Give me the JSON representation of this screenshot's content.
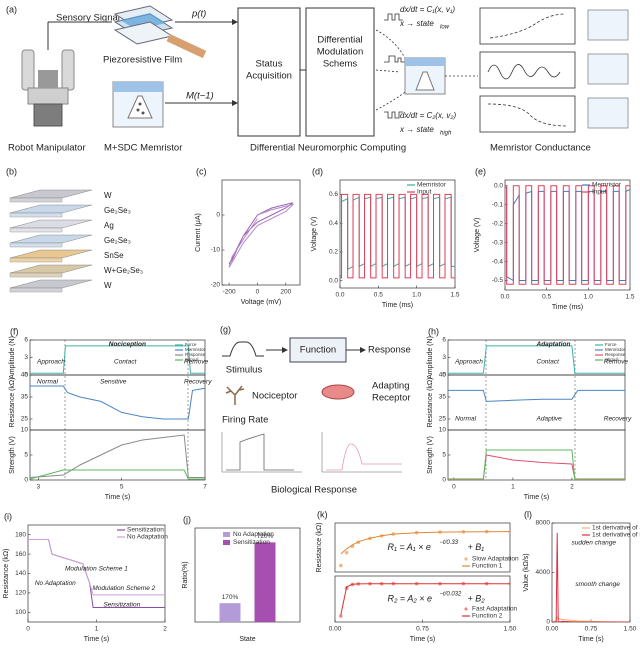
{
  "panel_a": {
    "label": "(a)",
    "sensory_signal": "Sensory Signal",
    "p_t": "p(t)",
    "film": "Piezoresistive Film",
    "m_t": "M(t−1)",
    "status": [
      "Status",
      "Acquisition"
    ],
    "modulation": [
      "Differential",
      "Modulation",
      "Schems"
    ],
    "eq1": {
      "lhs": "dx/dt = C₁(x, v₁)",
      "state": "x → state",
      "sub": "low"
    },
    "eq2": {
      "lhs": "dx/dt = C₂(x, v₂)",
      "state": "x → state",
      "sub": "high"
    },
    "captions": [
      "Robot Manipulator",
      "M+SDC Memristor",
      "Differential Neuromorphic Computing",
      "Memristor Conductance"
    ]
  },
  "panel_b": {
    "label": "(b)",
    "layers": [
      "W",
      "Ge₂Se₃",
      "Ag",
      "Ge₂Se₃",
      "SnSe",
      "W+Ge₂Se₃",
      "W"
    ]
  },
  "panel_g": {
    "label": "(g)",
    "stimulus": "Stimulus",
    "function": "Function",
    "response": "Response",
    "nociceptor": "Nociceptor",
    "adapting": [
      "Adapting",
      "Receptor"
    ],
    "firing_rate": "Firing Rate",
    "biological": "Biological Response"
  },
  "chart_data": [
    {
      "type": "line",
      "panel": "(c)",
      "xlabel": "Voltage (mV)",
      "ylabel": "Current (μA)",
      "xlim": [
        -250,
        300
      ],
      "ylim": [
        -20,
        10
      ],
      "xticks": [
        -200,
        0,
        200
      ],
      "yticks": [
        -20,
        -10,
        0
      ],
      "x": [
        0,
        100,
        200,
        250,
        200,
        100,
        0,
        -100,
        -200,
        -180,
        -100,
        0
      ],
      "series": [
        {
          "color": "#9a62b3",
          "values": [
            0,
            2,
            3,
            3.5,
            2,
            0,
            -2,
            -6,
            -14,
            -13,
            -6,
            0
          ]
        },
        {
          "color": "#b78ccb",
          "values": [
            0,
            1.5,
            2.5,
            3,
            1,
            -1,
            -3,
            -8,
            -15,
            -12,
            -7,
            -1
          ]
        }
      ]
    },
    {
      "type": "line",
      "panel": "(d)",
      "xlabel": "Time (ms)",
      "ylabel": "Voltage (V)",
      "xlim": [
        0,
        1.5
      ],
      "ylim": [
        -0.05,
        0.7
      ],
      "legend": "upper right",
      "xticks": [
        {
          "value": 0,
          "label": "0.0"
        },
        0.5,
        {
          "value": 1,
          "label": "1.0"
        },
        1.5
      ],
      "yticks": [
        {
          "value": 0,
          "label": "0.0"
        },
        0.2,
        0.4,
        0.6
      ],
      "x": [
        0,
        0.02,
        0.02,
        0.1,
        0.1,
        0.17,
        0.17,
        0.25,
        0.25,
        0.32,
        0.32,
        0.4,
        0.4,
        0.47,
        0.47,
        0.55,
        0.55,
        0.62,
        0.62,
        0.7,
        0.7,
        0.77,
        0.77,
        0.85,
        0.85,
        0.92,
        0.92,
        1.0,
        1.0,
        1.07,
        1.07,
        1.15,
        1.15,
        1.22,
        1.22,
        1.3,
        1.3,
        1.37,
        1.37,
        1.45,
        1.45,
        1.5
      ],
      "series": [
        {
          "name": "Memristor",
          "color": "#3fa7a1",
          "values": [
            0.03,
            0.04,
            0.55,
            0.57,
            0.08,
            0.1,
            0.56,
            0.58,
            0.1,
            0.12,
            0.57,
            0.58,
            0.1,
            0.12,
            0.57,
            0.58,
            0.1,
            0.12,
            0.57,
            0.58,
            0.1,
            0.12,
            0.57,
            0.58,
            0.1,
            0.12,
            0.57,
            0.58,
            0.1,
            0.12,
            0.57,
            0.58,
            0.1,
            0.12,
            0.57,
            0.58,
            0.1,
            0.12,
            0.57,
            0.58,
            0.1,
            0.1
          ]
        },
        {
          "name": "Input",
          "color": "#e0405a",
          "values": [
            0.02,
            0.02,
            0.6,
            0.6,
            0.02,
            0.02,
            0.6,
            0.6,
            0.02,
            0.02,
            0.6,
            0.6,
            0.02,
            0.02,
            0.6,
            0.6,
            0.02,
            0.02,
            0.6,
            0.6,
            0.02,
            0.02,
            0.6,
            0.6,
            0.02,
            0.02,
            0.6,
            0.6,
            0.02,
            0.02,
            0.6,
            0.6,
            0.02,
            0.02,
            0.6,
            0.6,
            0.02,
            0.02,
            0.6,
            0.6,
            0.02,
            0.02
          ]
        }
      ]
    },
    {
      "type": "line",
      "panel": "(e)",
      "xlabel": "Time (ms)",
      "ylabel": "Voltage (V)",
      "xlim": [
        0,
        1.5
      ],
      "ylim": [
        -0.55,
        0.03
      ],
      "legend": "upper right",
      "xticks": [
        {
          "value": 0,
          "label": "0.0"
        },
        0.5,
        {
          "value": 1,
          "label": "1.0"
        },
        1.5
      ],
      "yticks": [
        {
          "value": 0,
          "label": "0.0"
        },
        -0.1,
        -0.2,
        -0.3,
        -0.4,
        -0.5
      ],
      "x": [
        0,
        0.02,
        0.02,
        0.1,
        0.1,
        0.17,
        0.17,
        0.25,
        0.25,
        0.32,
        0.32,
        0.4,
        0.4,
        0.47,
        0.47,
        0.55,
        0.55,
        0.62,
        0.62,
        0.7,
        0.7,
        0.77,
        0.77,
        0.85,
        0.85,
        0.92,
        0.92,
        1.0,
        1.0,
        1.07,
        1.07,
        1.15,
        1.15,
        1.22,
        1.22,
        1.3,
        1.3,
        1.37,
        1.37,
        1.45,
        1.45,
        1.5
      ],
      "series": [
        {
          "name": "Memristor",
          "color": "#3a7fc0",
          "values": [
            -0.01,
            -0.01,
            -0.48,
            -0.5,
            -0.1,
            -0.05,
            -0.5,
            -0.5,
            -0.04,
            -0.03,
            -0.5,
            -0.5,
            -0.03,
            -0.03,
            -0.5,
            -0.5,
            -0.03,
            -0.03,
            -0.5,
            -0.5,
            -0.03,
            -0.03,
            -0.5,
            -0.5,
            -0.03,
            -0.03,
            -0.5,
            -0.5,
            -0.03,
            -0.03,
            -0.5,
            -0.5,
            -0.03,
            -0.03,
            -0.5,
            -0.5,
            -0.03,
            -0.03,
            -0.5,
            -0.5,
            -0.03,
            -0.02
          ]
        },
        {
          "name": "Input",
          "color": "#e0405a",
          "values": [
            0,
            0,
            -0.52,
            -0.52,
            0,
            0,
            -0.52,
            -0.52,
            0,
            0,
            -0.52,
            -0.52,
            0,
            0,
            -0.52,
            -0.52,
            0,
            0,
            -0.52,
            -0.52,
            0,
            0,
            -0.52,
            -0.52,
            0,
            0,
            -0.52,
            -0.52,
            0,
            0,
            -0.52,
            -0.52,
            0,
            0,
            -0.52,
            -0.52,
            0,
            0,
            -0.52,
            -0.52,
            0,
            0
          ]
        }
      ]
    },
    {
      "type": "line",
      "panel": "(f)",
      "ylabel": "Amplitude (N)",
      "xlim": [
        2.8,
        7
      ],
      "ylim": [
        0,
        6
      ],
      "yticks": [
        0,
        3,
        6
      ],
      "legend_entries": [
        {
          "name": "Force",
          "color": "#3fb0a8"
        },
        {
          "name": "Memristor",
          "color": "#4a86c5"
        },
        {
          "name": "Response",
          "color": "#8a8a8a"
        },
        {
          "name": "Stimuli",
          "color": "#5cb85c"
        }
      ],
      "annotations": [
        "Nociception",
        "Approach",
        "Contact",
        "Remove"
      ],
      "x": [
        2.8,
        3.6,
        3.65,
        6.6,
        6.65,
        7
      ],
      "series": [
        {
          "color": "#3fb0a8",
          "values": [
            0.3,
            0.3,
            5,
            5,
            0.3,
            0.3
          ]
        }
      ]
    },
    {
      "type": "line",
      "ylabel": "Resistance (kΩ)",
      "xlim": [
        2.8,
        7
      ],
      "ylim": [
        20,
        45
      ],
      "yticks": [
        25,
        35,
        45
      ],
      "annotations": [
        "Normal",
        "Sensitive",
        "Recovery"
      ],
      "x": [
        2.8,
        3.6,
        3.7,
        4,
        4.5,
        5,
        5.5,
        6,
        6.6,
        6.7,
        7
      ],
      "series": [
        {
          "color": "#4a86c5",
          "values": [
            40,
            40,
            37,
            35,
            33,
            28,
            26,
            25,
            25,
            38,
            39
          ]
        }
      ]
    },
    {
      "type": "line",
      "ylabel": "Strength (V)",
      "xlabel": "Time (s)",
      "xlim": [
        2.8,
        7
      ],
      "ylim": [
        0,
        10
      ],
      "yticks": [
        0,
        5,
        10
      ],
      "xticks": [
        3,
        5,
        7
      ],
      "x": [
        2.8,
        3.6,
        4,
        4.5,
        5,
        5.5,
        6,
        6.5,
        6.6,
        7
      ],
      "series": [
        {
          "color": "#8a8a8a",
          "values": [
            0.5,
            1,
            3,
            5,
            7,
            8,
            8.5,
            9,
            0.5,
            0.5
          ]
        },
        {
          "color": "#5cb85c",
          "values": [
            0.2,
            2,
            2,
            2,
            2,
            2,
            2,
            2,
            0.2,
            0.2
          ]
        }
      ]
    },
    {
      "type": "line",
      "panel": "(h)",
      "ylabel": "Amplitude (N)",
      "xlim": [
        -0.1,
        2.9
      ],
      "ylim": [
        0,
        6
      ],
      "yticks": [
        0,
        3,
        6
      ],
      "legend_entries": [
        {
          "name": "Force",
          "color": "#3fb0a8"
        },
        {
          "name": "Memristor",
          "color": "#4a86c5"
        },
        {
          "name": "Response",
          "color": "#e0506a"
        },
        {
          "name": "Stimuli",
          "color": "#5cb85c"
        }
      ],
      "annotations": [
        "Adaptation",
        "Approach",
        "Contact",
        "Remove"
      ],
      "x": [
        -0.1,
        0.5,
        0.55,
        2,
        2.05,
        2.9
      ],
      "series": [
        {
          "color": "#3fb0a8",
          "values": [
            0.3,
            0.3,
            5,
            5,
            0.3,
            0.3
          ]
        }
      ]
    },
    {
      "type": "line",
      "ylabel": "Resistance (kΩ)",
      "xlim": [
        -0.1,
        2.9
      ],
      "ylim": [
        20,
        45
      ],
      "yticks": [
        25,
        35,
        45
      ],
      "annotations": [
        "Normal",
        "Adaptive",
        "Recovery"
      ],
      "x": [
        -0.1,
        0.5,
        0.55,
        1,
        1.5,
        2,
        2.1,
        2.9
      ],
      "series": [
        {
          "color": "#4a86c5",
          "values": [
            38,
            38,
            33,
            33.5,
            34,
            34,
            38,
            38
          ]
        }
      ]
    },
    {
      "type": "line",
      "ylabel": "Strength (V)",
      "xlabel": "Time (s)",
      "xlim": [
        -0.1,
        2.9
      ],
      "ylim": [
        0,
        10
      ],
      "yticks": [
        0,
        5,
        10
      ],
      "xticks": [
        0,
        1,
        2
      ],
      "x": [
        -0.1,
        0.5,
        0.55,
        1,
        1.5,
        2,
        2.05,
        2.9
      ],
      "series": [
        {
          "color": "#e0506a",
          "values": [
            0.2,
            0.2,
            5,
            4,
            3.5,
            3.2,
            0.2,
            0.2
          ]
        },
        {
          "color": "#5cb85c",
          "values": [
            0.1,
            0.1,
            6,
            6,
            6,
            6,
            0.1,
            0.1
          ]
        }
      ]
    },
    {
      "type": "line",
      "panel": "(i)",
      "xlabel": "Time (s)",
      "ylabel": "Resistance (kΩ)",
      "xlim": [
        0,
        2
      ],
      "ylim": [
        90,
        190
      ],
      "xticks": [
        0,
        1,
        2
      ],
      "yticks": [
        100,
        120,
        140,
        160,
        180
      ],
      "legend": "upper right",
      "annotations": [
        "Modulation Scheme 1",
        "No Adaptation",
        "Modulation Scheme 2",
        "Sensitization"
      ],
      "x": [
        0,
        0.3,
        0.35,
        0.8,
        0.9,
        0.95,
        2
      ],
      "series": [
        {
          "name": "Sensitization",
          "color": "#8b4fa0",
          "values": [
            175,
            175,
            160,
            150,
            130,
            105,
            105
          ]
        },
        {
          "name": "No Adaptation",
          "color": "#c9a0d8",
          "values": [
            175,
            175,
            160,
            150,
            130,
            118,
            118
          ]
        }
      ]
    },
    {
      "type": "bar",
      "panel": "(j)",
      "xlabel": "State",
      "ylabel": "Ratio(%)",
      "ylim": [
        0,
        850
      ],
      "legend": "upper left",
      "categories": [
        null
      ],
      "series": [
        {
          "name": "No Adaptation",
          "color": "#b39ad8",
          "values": [
            170
          ],
          "value_labels": [
            "170%"
          ]
        },
        {
          "name": "Sensitization",
          "color": "#a64fb0",
          "values": [
            720
          ],
          "value_labels": [
            "720%"
          ]
        }
      ]
    },
    {
      "type": "line",
      "panel": "(k)",
      "ylabel": "Resistance (kΩ)",
      "xlim": [
        0,
        1.5
      ],
      "ylim": [
        100,
        480
      ],
      "legend": "lower right",
      "equation": {
        "lhs": "R₁ = A₁ × e",
        "exp": "−t/0.33",
        "rhs": "+ B₁"
      },
      "x": [
        0.05,
        0.1,
        0.15,
        0.2,
        0.3,
        0.4,
        0.5,
        0.7,
        0.9,
        1.1,
        1.3,
        1.5
      ],
      "series": [
        {
          "name": "Slow Adaptation",
          "color": "#f2b880",
          "mode": "markers",
          "values": [
            150,
            250,
            300,
            330,
            360,
            380,
            395,
            405,
            410,
            412,
            413,
            413
          ]
        },
        {
          "name": "Function 1",
          "color": "#e08830",
          "values": [
            240,
            280,
            310,
            335,
            362,
            381,
            394,
            404,
            409,
            411,
            412,
            413
          ]
        }
      ]
    },
    {
      "type": "line",
      "xlabel": "Time (s)",
      "xlim": [
        0,
        1.5
      ],
      "ylim": [
        100,
        480
      ],
      "legend": "lower right",
      "xticks": [
        {
          "value": 0,
          "label": "0.00"
        },
        0.75,
        {
          "value": 1.5,
          "label": "1.50"
        }
      ],
      "equation": {
        "lhs": "R₂ = A₂ × e",
        "exp": "−t/0.032",
        "rhs": "+ B₂"
      },
      "x": [
        0.05,
        0.1,
        0.15,
        0.2,
        0.3,
        0.4,
        0.5,
        0.7,
        0.9,
        1.1,
        1.3,
        1.5
      ],
      "series": [
        {
          "name": "Fast Adaptation",
          "color": "#f08a8a",
          "mode": "markers",
          "values": [
            150,
            380,
            410,
            415,
            416,
            416,
            417,
            417,
            416,
            417,
            417,
            417
          ]
        },
        {
          "name": "Function 2",
          "color": "#e03030",
          "values": [
            160,
            390,
            412,
            415,
            416,
            416,
            416,
            416,
            416,
            416,
            416,
            416
          ]
        }
      ]
    },
    {
      "type": "line",
      "panel": "(l)",
      "xlabel": "Time (s)",
      "ylabel": "Value (kΩ/s)",
      "xlim": [
        0,
        1.5
      ],
      "ylim": [
        0,
        8000
      ],
      "legend": "upper right",
      "xticks": [
        {
          "value": 0,
          "label": "0.00"
        },
        0.75,
        {
          "value": 1.5,
          "label": "1.50"
        }
      ],
      "yticks": [
        0,
        4000,
        8000
      ],
      "annotations": [
        "sudden change",
        "smooth change"
      ],
      "x": [
        0,
        0.08,
        0.1,
        0.12,
        0.2,
        0.5,
        1,
        1.5
      ],
      "series": [
        {
          "name": "1st derivative of SA",
          "color": "#f2b070",
          "values": [
            0,
            100,
            400,
            300,
            200,
            80,
            20,
            0
          ]
        },
        {
          "name": "1st derivative of FA",
          "color": "#e03040",
          "values": [
            0,
            0,
            7200,
            0,
            50,
            0,
            0,
            0
          ]
        }
      ]
    }
  ]
}
